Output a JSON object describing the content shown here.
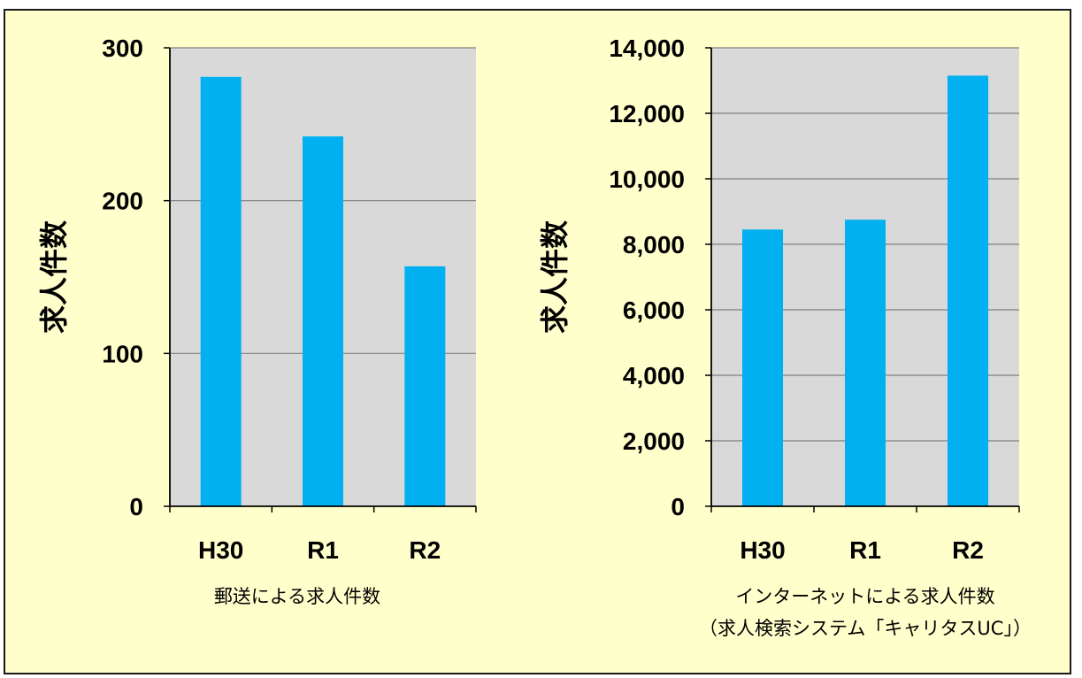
{
  "colors": {
    "background": "#FFFFCC",
    "plot_area": "#D9D9D9",
    "bar": "#00B0F0",
    "gridline": "#808080",
    "axis": "#000000"
  },
  "chart_data": [
    {
      "type": "bar",
      "categories": [
        "H30",
        "R1",
        "R2"
      ],
      "values": [
        281,
        242,
        157
      ],
      "ylabel": "求人件数",
      "xlabel": "郵送による求人件数",
      "ylim": [
        0,
        300
      ],
      "yticks": [
        "0",
        "100",
        "200",
        "300"
      ],
      "grid": true,
      "legend": false
    },
    {
      "type": "bar",
      "categories": [
        "H30",
        "R1",
        "R2"
      ],
      "values": [
        8450,
        8750,
        13150
      ],
      "ylabel": "求人件数",
      "xlabel": "インターネットによる求人件数",
      "xlabel2": "（求人検索システム「キャリタスUC」）",
      "ylim": [
        0,
        14000
      ],
      "yticks": [
        "0",
        "2,000",
        "4,000",
        "6,000",
        "8,000",
        "10,000",
        "12,000",
        "14,000"
      ],
      "grid": true,
      "legend": false
    }
  ]
}
